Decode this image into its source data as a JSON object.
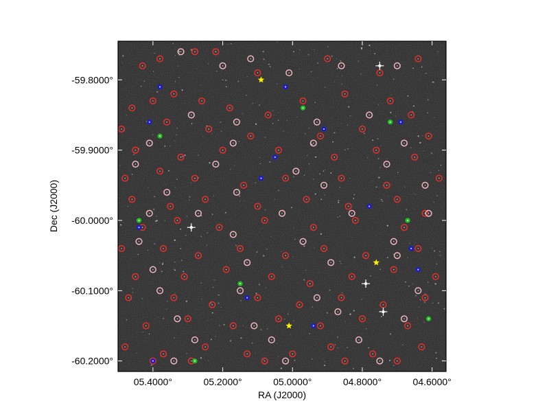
{
  "chart_data": {
    "type": "scatter",
    "title": "",
    "xlabel": "RA (J2000)",
    "ylabel": "Dec (J2000)",
    "xlim": [
      5.5,
      4.56
    ],
    "ylim": [
      -60.215,
      -59.745
    ],
    "x_ticks": [
      {
        "value": 5.4,
        "label": "05.4000°"
      },
      {
        "value": 5.2,
        "label": "05.2000°"
      },
      {
        "value": 5.0,
        "label": "05.0000°"
      },
      {
        "value": 4.8,
        "label": "04.8000°"
      },
      {
        "value": 4.6,
        "label": "04.6000°"
      }
    ],
    "y_ticks": [
      {
        "value": -59.8,
        "label": "-59.8000°"
      },
      {
        "value": -59.9,
        "label": "-59.9000°"
      },
      {
        "value": -60.0,
        "label": "-60.0000°"
      },
      {
        "value": -60.1,
        "label": "-60.1000°"
      },
      {
        "value": -60.2,
        "label": "-60.2000°"
      }
    ],
    "background": "#262626",
    "grid": false,
    "legend": "none",
    "series": [
      {
        "marker": "open-circle",
        "color": "#e8302a",
        "points": [
          [
            5.43,
            -59.78
          ],
          [
            5.38,
            -59.77
          ],
          [
            5.28,
            -59.76
          ],
          [
            5.22,
            -59.76
          ],
          [
            5.1,
            -59.79
          ],
          [
            4.9,
            -59.77
          ],
          [
            4.75,
            -59.79
          ],
          [
            4.64,
            -59.77
          ],
          [
            5.46,
            -59.84
          ],
          [
            5.4,
            -59.83
          ],
          [
            5.34,
            -59.82
          ],
          [
            5.26,
            -59.83
          ],
          [
            5.18,
            -59.84
          ],
          [
            5.07,
            -59.85
          ],
          [
            4.97,
            -59.83
          ],
          [
            4.85,
            -59.82
          ],
          [
            4.72,
            -59.83
          ],
          [
            4.66,
            -59.85
          ],
          [
            5.49,
            -59.87
          ],
          [
            5.36,
            -59.86
          ],
          [
            5.24,
            -59.87
          ],
          [
            5.12,
            -59.88
          ],
          [
            4.92,
            -59.88
          ],
          [
            4.8,
            -59.87
          ],
          [
            4.61,
            -59.88
          ],
          [
            5.45,
            -59.9
          ],
          [
            5.32,
            -59.91
          ],
          [
            5.2,
            -59.9
          ],
          [
            5.04,
            -59.9
          ],
          [
            4.88,
            -59.91
          ],
          [
            4.76,
            -59.9
          ],
          [
            4.65,
            -59.91
          ],
          [
            5.48,
            -59.94
          ],
          [
            5.38,
            -59.93
          ],
          [
            5.28,
            -59.94
          ],
          [
            5.14,
            -59.95
          ],
          [
            5.02,
            -59.94
          ],
          [
            4.86,
            -59.94
          ],
          [
            4.73,
            -59.95
          ],
          [
            4.58,
            -59.94
          ],
          [
            5.46,
            -59.97
          ],
          [
            5.35,
            -59.98
          ],
          [
            5.25,
            -59.97
          ],
          [
            5.1,
            -59.98
          ],
          [
            4.96,
            -59.97
          ],
          [
            4.84,
            -59.98
          ],
          [
            4.7,
            -59.97
          ],
          [
            4.62,
            -59.99
          ],
          [
            5.43,
            -60.01
          ],
          [
            5.33,
            -60.0
          ],
          [
            5.21,
            -60.01
          ],
          [
            5.08,
            -60.0
          ],
          [
            4.94,
            -60.01
          ],
          [
            4.82,
            -60.0
          ],
          [
            4.68,
            -60.01
          ],
          [
            5.49,
            -60.04
          ],
          [
            5.37,
            -60.04
          ],
          [
            5.27,
            -60.05
          ],
          [
            5.15,
            -60.04
          ],
          [
            5.02,
            -60.05
          ],
          [
            4.91,
            -60.04
          ],
          [
            4.79,
            -60.05
          ],
          [
            4.64,
            -60.04
          ],
          [
            5.45,
            -60.08
          ],
          [
            5.31,
            -60.08
          ],
          [
            5.19,
            -60.07
          ],
          [
            5.06,
            -60.08
          ],
          [
            4.95,
            -60.09
          ],
          [
            4.83,
            -60.08
          ],
          [
            4.71,
            -60.07
          ],
          [
            4.59,
            -60.08
          ],
          [
            5.47,
            -60.11
          ],
          [
            5.34,
            -60.11
          ],
          [
            5.23,
            -60.12
          ],
          [
            5.1,
            -60.11
          ],
          [
            4.98,
            -60.12
          ],
          [
            4.86,
            -60.11
          ],
          [
            4.74,
            -60.12
          ],
          [
            4.62,
            -60.11
          ],
          [
            5.42,
            -60.15
          ],
          [
            5.3,
            -60.14
          ],
          [
            5.17,
            -60.15
          ],
          [
            5.04,
            -60.14
          ],
          [
            4.92,
            -60.15
          ],
          [
            4.8,
            -60.14
          ],
          [
            4.67,
            -60.15
          ],
          [
            5.48,
            -60.18
          ],
          [
            5.37,
            -60.19
          ],
          [
            5.25,
            -60.18
          ],
          [
            5.13,
            -60.19
          ],
          [
            5.0,
            -60.19
          ],
          [
            4.89,
            -60.18
          ],
          [
            4.77,
            -60.19
          ],
          [
            4.63,
            -60.18
          ],
          [
            5.4,
            -60.2
          ],
          [
            5.29,
            -60.2
          ],
          [
            5.08,
            -60.2
          ],
          [
            4.85,
            -60.2
          ],
          [
            4.7,
            -60.2
          ]
        ]
      },
      {
        "marker": "open-circle",
        "color": "#f2b8c0",
        "points": [
          [
            5.32,
            -59.76
          ],
          [
            5.2,
            -59.78
          ],
          [
            5.12,
            -59.77
          ],
          [
            5.01,
            -59.79
          ],
          [
            4.86,
            -59.78
          ],
          [
            4.7,
            -59.78
          ],
          [
            5.29,
            -59.85
          ],
          [
            5.16,
            -59.86
          ],
          [
            4.93,
            -59.86
          ],
          [
            4.78,
            -59.85
          ],
          [
            5.41,
            -59.89
          ],
          [
            5.17,
            -59.89
          ],
          [
            4.94,
            -59.89
          ],
          [
            4.68,
            -59.89
          ],
          [
            5.45,
            -59.92
          ],
          [
            5.22,
            -59.92
          ],
          [
            4.99,
            -59.93
          ],
          [
            4.73,
            -59.92
          ],
          [
            5.36,
            -59.96
          ],
          [
            5.16,
            -59.96
          ],
          [
            4.91,
            -59.95
          ],
          [
            4.62,
            -59.95
          ],
          [
            5.41,
            -59.99
          ],
          [
            5.27,
            -59.99
          ],
          [
            5.03,
            -59.99
          ],
          [
            4.83,
            -59.99
          ],
          [
            4.61,
            -59.99
          ],
          [
            5.44,
            -60.03
          ],
          [
            5.17,
            -60.02
          ],
          [
            4.97,
            -60.03
          ],
          [
            4.71,
            -60.03
          ],
          [
            5.4,
            -60.07
          ],
          [
            5.13,
            -60.06
          ],
          [
            4.89,
            -60.06
          ],
          [
            4.7,
            -60.05
          ],
          [
            5.38,
            -60.1
          ],
          [
            5.15,
            -60.1
          ],
          [
            4.93,
            -60.11
          ],
          [
            4.64,
            -60.1
          ],
          [
            5.33,
            -60.14
          ],
          [
            5.11,
            -60.15
          ],
          [
            4.87,
            -60.13
          ],
          [
            4.68,
            -60.14
          ],
          [
            5.28,
            -60.17
          ],
          [
            5.06,
            -60.17
          ],
          [
            4.81,
            -60.17
          ],
          [
            5.34,
            -60.2
          ],
          [
            5.02,
            -60.2
          ],
          [
            4.75,
            -60.2
          ]
        ]
      },
      {
        "marker": "filled-circle",
        "color": "#1a1ad6",
        "points": [
          [
            5.38,
            -59.81
          ],
          [
            5.02,
            -59.81
          ],
          [
            5.41,
            -59.86
          ],
          [
            4.91,
            -59.87
          ],
          [
            4.69,
            -59.86
          ],
          [
            5.05,
            -59.91
          ],
          [
            5.09,
            -59.94
          ],
          [
            4.78,
            -59.98
          ],
          [
            5.44,
            -60.01
          ],
          [
            4.66,
            -60.04
          ],
          [
            4.64,
            -60.07
          ],
          [
            5.13,
            -60.11
          ],
          [
            4.94,
            -60.15
          ],
          [
            5.4,
            -60.2
          ]
        ]
      },
      {
        "marker": "filled-circle",
        "color": "#22c020",
        "points": [
          [
            4.97,
            -59.84
          ],
          [
            5.38,
            -59.88
          ],
          [
            4.72,
            -59.86
          ],
          [
            5.44,
            -60.0
          ],
          [
            4.67,
            -60.0
          ],
          [
            5.15,
            -60.09
          ],
          [
            4.61,
            -60.14
          ],
          [
            5.28,
            -60.2
          ]
        ]
      },
      {
        "marker": "star",
        "color": "#ffee00",
        "points": [
          [
            5.09,
            -59.8
          ],
          [
            4.76,
            -60.06
          ],
          [
            5.01,
            -60.15
          ]
        ]
      },
      {
        "marker": "bright-star",
        "color": "#ffffff",
        "points": [
          [
            4.75,
            -59.78
          ],
          [
            5.29,
            -60.01
          ],
          [
            4.74,
            -60.13
          ],
          [
            4.79,
            -60.09
          ]
        ]
      }
    ]
  }
}
